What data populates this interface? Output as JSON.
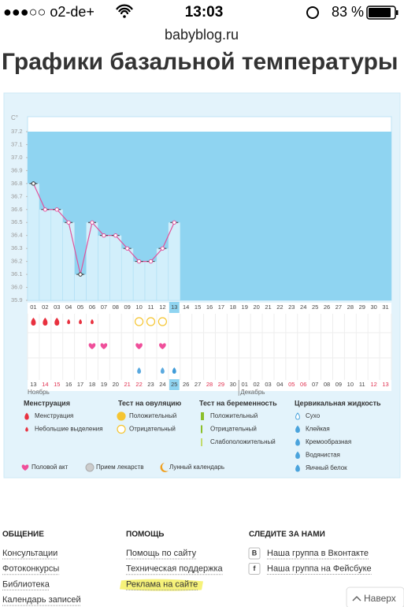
{
  "status_bar": {
    "carrier": "●●●○○ o2-de+",
    "time": "13:03",
    "battery": "83 %"
  },
  "url": "babyblog.ru",
  "title": "Графики базальной температуры",
  "chart_data": {
    "type": "line",
    "y_label": "C°",
    "categories": [
      "01",
      "02",
      "03",
      "04",
      "05",
      "06",
      "07",
      "08",
      "09",
      "10",
      "11",
      "12",
      "13",
      "14",
      "15",
      "16",
      "17",
      "18",
      "19",
      "20",
      "21",
      "22",
      "23",
      "24",
      "25",
      "26",
      "27",
      "28",
      "29",
      "30",
      "31"
    ],
    "values": [
      36.8,
      36.6,
      36.6,
      36.5,
      36.1,
      36.5,
      36.4,
      36.4,
      36.3,
      36.2,
      36.2,
      36.3,
      36.5,
      null,
      null,
      null,
      null,
      null,
      null,
      null,
      null,
      null,
      null,
      null,
      null,
      null,
      null,
      null,
      null,
      null,
      null
    ],
    "color": "#e0529c",
    "ylim": [
      35.9,
      37.2
    ],
    "yticks": [
      35.9,
      {
        "value": 36,
        "label": "36.0"
      },
      36.1,
      36.2,
      36.3,
      36.4,
      36.5,
      36.6,
      36.7,
      36.8,
      36.9,
      {
        "value": 37,
        "label": "37.0"
      },
      37.1,
      37.2
    ],
    "dates": [
      "13",
      "14",
      "15",
      "16",
      "17",
      "18",
      "19",
      "20",
      "21",
      "22",
      "23",
      "24",
      "25",
      "26",
      "27",
      "28",
      "29",
      "30",
      "01",
      "02",
      "03",
      "04",
      "05",
      "06",
      "07",
      "08",
      "09",
      "10",
      "11",
      "12",
      "13"
    ],
    "months": [
      "Ноябрь",
      "Декабрь"
    ]
  },
  "legend": {
    "groups": [
      {
        "title": "Менструация",
        "items": [
          "Менструация",
          "Небольшие выделения"
        ]
      },
      {
        "title": "Тест на овуляцию",
        "items": [
          "Положительный",
          "Отрицательный"
        ]
      },
      {
        "title": "Тест на беременность",
        "items": [
          "Положительный",
          "Отрицательный",
          "Слабоположительный"
        ]
      },
      {
        "title": "Цервикальная жидкость",
        "items": [
          "Сухо",
          "Клейкая",
          "Кремообразная",
          "Водянистая",
          "Яичный белок"
        ]
      }
    ],
    "extra": [
      "Половой акт",
      "Прием лекарств",
      "Лунный календарь"
    ]
  },
  "footer": {
    "columns": [
      {
        "title": "ОБЩЕНИЕ",
        "links": [
          "Консультации",
          "Фотоконкурсы",
          "Библиотека",
          "Календарь записей"
        ]
      },
      {
        "title": "ПОМОЩЬ",
        "links": [
          "Помощь по сайту",
          "Техническая поддержка",
          "Реклама на сайте"
        ]
      },
      {
        "title": "СЛЕДИТЕ ЗА НАМИ",
        "links": [
          "Наша группа в Вконтакте",
          "Наша группа на Фейсбуке"
        ],
        "icons": [
          "В",
          "f"
        ]
      }
    ]
  },
  "back_to_top": "Наверх"
}
